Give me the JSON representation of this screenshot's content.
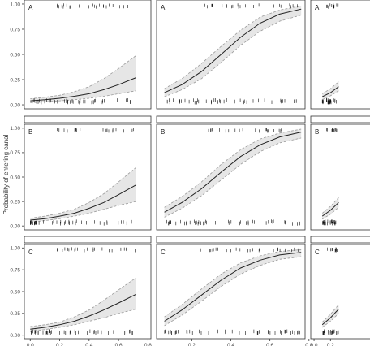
{
  "figure": {
    "ylabel": "Probability of entering canal",
    "y_ticks": [
      "0.00",
      "0.25",
      "0.50",
      "0.75",
      "1.00"
    ],
    "x_ticks_col1": [
      "0.0",
      "0.2",
      "0.4",
      "0.6",
      "0.8"
    ],
    "x_ticks_col2": [
      "0.2",
      "0.4",
      "0.6",
      "0.8"
    ],
    "x_ticks_col3": [
      "0.0",
      "0.2"
    ],
    "row_labels": [
      "A",
      "B",
      "C"
    ]
  },
  "chart_data": [
    {
      "type": "line",
      "panel": "A-1",
      "label": "A",
      "xlim": [
        -0.04,
        0.82
      ],
      "ylim": [
        -0.04,
        1.04
      ],
      "x": [
        0.0,
        0.1,
        0.2,
        0.3,
        0.4,
        0.5,
        0.6,
        0.72
      ],
      "y": [
        0.04,
        0.05,
        0.065,
        0.085,
        0.11,
        0.15,
        0.2,
        0.27
      ],
      "lower": [
        0.02,
        0.03,
        0.04,
        0.05,
        0.065,
        0.085,
        0.11,
        0.14
      ],
      "upper": [
        0.06,
        0.075,
        0.095,
        0.13,
        0.18,
        0.26,
        0.36,
        0.49
      ]
    },
    {
      "type": "line",
      "panel": "A-2",
      "label": "A",
      "xlim": [
        0.02,
        0.78
      ],
      "ylim": [
        -0.04,
        1.04
      ],
      "x": [
        0.06,
        0.15,
        0.25,
        0.35,
        0.45,
        0.55,
        0.65,
        0.76
      ],
      "y": [
        0.12,
        0.2,
        0.33,
        0.5,
        0.67,
        0.81,
        0.9,
        0.95
      ],
      "lower": [
        0.08,
        0.15,
        0.26,
        0.42,
        0.59,
        0.73,
        0.83,
        0.89
      ],
      "upper": [
        0.16,
        0.26,
        0.41,
        0.58,
        0.74,
        0.87,
        0.94,
        0.98
      ]
    },
    {
      "type": "line",
      "panel": "A-3",
      "label": "A",
      "xlim": [
        -0.04,
        0.82
      ],
      "ylim": [
        -0.04,
        1.04
      ],
      "x": [
        0.1,
        0.2,
        0.3
      ],
      "y": [
        0.08,
        0.12,
        0.18
      ],
      "lower": [
        0.05,
        0.09,
        0.14
      ],
      "upper": [
        0.11,
        0.16,
        0.23
      ]
    },
    {
      "type": "line",
      "panel": "B-1",
      "label": "B",
      "xlim": [
        -0.04,
        0.82
      ],
      "ylim": [
        -0.04,
        1.04
      ],
      "x": [
        0.0,
        0.1,
        0.2,
        0.3,
        0.4,
        0.5,
        0.6,
        0.72
      ],
      "y": [
        0.06,
        0.075,
        0.1,
        0.13,
        0.18,
        0.24,
        0.32,
        0.42
      ],
      "lower": [
        0.04,
        0.055,
        0.075,
        0.1,
        0.13,
        0.17,
        0.21,
        0.25
      ],
      "upper": [
        0.08,
        0.1,
        0.13,
        0.17,
        0.24,
        0.33,
        0.45,
        0.6
      ]
    },
    {
      "type": "line",
      "panel": "B-2",
      "label": "B",
      "xlim": [
        0.02,
        0.78
      ],
      "ylim": [
        -0.04,
        1.04
      ],
      "x": [
        0.06,
        0.15,
        0.25,
        0.35,
        0.45,
        0.55,
        0.65,
        0.76
      ],
      "y": [
        0.14,
        0.24,
        0.38,
        0.55,
        0.71,
        0.83,
        0.91,
        0.96
      ],
      "lower": [
        0.09,
        0.18,
        0.31,
        0.47,
        0.63,
        0.76,
        0.85,
        0.9
      ],
      "upper": [
        0.19,
        0.3,
        0.45,
        0.63,
        0.78,
        0.89,
        0.95,
        0.99
      ]
    },
    {
      "type": "line",
      "panel": "B-3",
      "label": "B",
      "xlim": [
        -0.04,
        0.82
      ],
      "ylim": [
        -0.04,
        1.04
      ],
      "x": [
        0.1,
        0.2,
        0.3
      ],
      "y": [
        0.1,
        0.16,
        0.24
      ],
      "lower": [
        0.07,
        0.12,
        0.19
      ],
      "upper": [
        0.13,
        0.2,
        0.29
      ]
    },
    {
      "type": "line",
      "panel": "C-1",
      "label": "C",
      "xlim": [
        -0.04,
        0.82
      ],
      "ylim": [
        -0.04,
        1.04
      ],
      "x": [
        0.0,
        0.1,
        0.2,
        0.3,
        0.4,
        0.5,
        0.6,
        0.72
      ],
      "y": [
        0.07,
        0.09,
        0.12,
        0.16,
        0.22,
        0.29,
        0.37,
        0.47
      ],
      "lower": [
        0.04,
        0.065,
        0.09,
        0.12,
        0.16,
        0.2,
        0.25,
        0.3
      ],
      "upper": [
        0.1,
        0.12,
        0.15,
        0.21,
        0.29,
        0.4,
        0.52,
        0.66
      ]
    },
    {
      "type": "line",
      "panel": "C-2",
      "label": "C",
      "xlim": [
        0.02,
        0.78
      ],
      "ylim": [
        -0.04,
        1.04
      ],
      "x": [
        0.06,
        0.15,
        0.25,
        0.35,
        0.45,
        0.55,
        0.65,
        0.76
      ],
      "y": [
        0.16,
        0.29,
        0.46,
        0.63,
        0.77,
        0.86,
        0.92,
        0.95
      ],
      "lower": [
        0.11,
        0.23,
        0.39,
        0.56,
        0.7,
        0.8,
        0.87,
        0.9
      ],
      "upper": [
        0.21,
        0.35,
        0.53,
        0.7,
        0.83,
        0.91,
        0.96,
        0.98
      ]
    },
    {
      "type": "line",
      "panel": "C-3",
      "label": "C",
      "xlim": [
        -0.04,
        0.82
      ],
      "ylim": [
        -0.04,
        1.04
      ],
      "x": [
        0.1,
        0.2,
        0.3
      ],
      "y": [
        0.12,
        0.2,
        0.3
      ],
      "lower": [
        0.09,
        0.16,
        0.25
      ],
      "upper": [
        0.15,
        0.24,
        0.35
      ]
    }
  ]
}
